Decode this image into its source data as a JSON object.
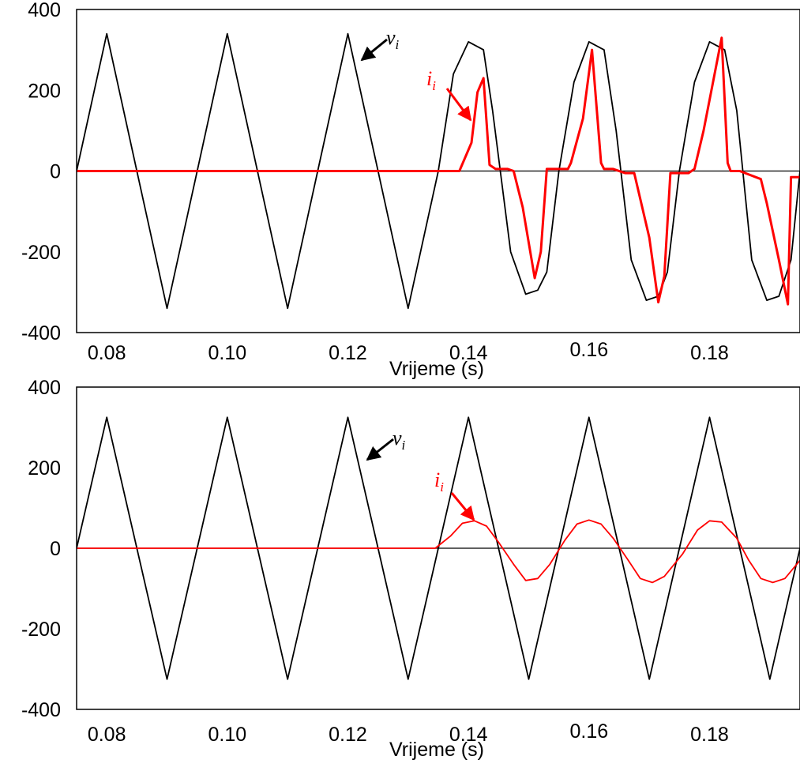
{
  "chart_data": [
    {
      "type": "line",
      "xlabel": "Vrijeme (s)",
      "ylabel": "",
      "xlim": [
        0.075,
        0.195
      ],
      "ylim": [
        -400,
        400
      ],
      "xticks": [
        "0.08",
        "0.10",
        "0.12",
        "0.14",
        "0.16",
        "0.18"
      ],
      "yticks": [
        "400",
        "200",
        "0",
        "-200",
        "-400"
      ],
      "grid": false,
      "annotations": [
        {
          "label": "v",
          "subscript": "i",
          "color": "#000000"
        },
        {
          "label": "i",
          "subscript": "i",
          "color": "#ff0000"
        }
      ],
      "series": [
        {
          "color": "#000000",
          "x": [
            0.075,
            0.08,
            0.085,
            0.09,
            0.095,
            0.1,
            0.105,
            0.11,
            0.115,
            0.12,
            0.125,
            0.13,
            0.135,
            0.1375,
            0.14,
            0.1425,
            0.144,
            0.147,
            0.1495,
            0.1515,
            0.153,
            0.155,
            0.1575,
            0.16,
            0.1625,
            0.1645,
            0.167,
            0.1695,
            0.1715,
            0.173,
            0.175,
            0.1775,
            0.18,
            0.1825,
            0.1845,
            0.187,
            0.1895,
            0.1915,
            0.1935,
            0.195
          ],
          "y": [
            0,
            340,
            0,
            -340,
            0,
            340,
            0,
            -340,
            0,
            340,
            0,
            -340,
            0,
            240,
            320,
            300,
            150,
            -200,
            -305,
            -295,
            -250,
            0,
            220,
            320,
            300,
            100,
            -220,
            -320,
            -310,
            -250,
            0,
            220,
            320,
            300,
            150,
            -220,
            -320,
            -310,
            -220,
            0
          ]
        },
        {
          "color": "#ff0000",
          "x": [
            0.075,
            0.1385,
            0.1405,
            0.1415,
            0.1425,
            0.1435,
            0.1445,
            0.1465,
            0.1475,
            0.149,
            0.151,
            0.152,
            0.153,
            0.154,
            0.1565,
            0.157,
            0.159,
            0.1605,
            0.162,
            0.1625,
            0.164,
            0.166,
            0.1675,
            0.17,
            0.1715,
            0.1725,
            0.1735,
            0.1765,
            0.1775,
            0.179,
            0.182,
            0.183,
            0.1835,
            0.185,
            0.1885,
            0.1895,
            0.1915,
            0.193,
            0.1935,
            0.195
          ],
          "y": [
            0,
            0,
            70,
            195,
            230,
            15,
            5,
            5,
            0,
            -90,
            -265,
            -200,
            5,
            5,
            5,
            20,
            130,
            300,
            20,
            5,
            5,
            -5,
            -5,
            -165,
            -325,
            -260,
            -5,
            -5,
            5,
            100,
            330,
            20,
            0,
            0,
            -20,
            -80,
            -220,
            -330,
            -15,
            -15
          ]
        }
      ]
    },
    {
      "type": "line",
      "xlabel": "Vrijeme (s)",
      "ylabel": "",
      "xlim": [
        0.075,
        0.195
      ],
      "ylim": [
        -400,
        400
      ],
      "xticks": [
        "0.08",
        "0.10",
        "0.12",
        "0.14",
        "0.16",
        "0.18"
      ],
      "yticks": [
        "400",
        "200",
        "0",
        "-200",
        "-400"
      ],
      "grid": false,
      "annotations": [
        {
          "label": "v",
          "subscript": "i",
          "color": "#000000"
        },
        {
          "label": "i",
          "subscript": "i",
          "color": "#ff0000"
        }
      ],
      "series": [
        {
          "color": "#000000",
          "x": [
            0.075,
            0.08,
            0.085,
            0.09,
            0.095,
            0.1,
            0.105,
            0.11,
            0.115,
            0.12,
            0.125,
            0.13,
            0.135,
            0.14,
            0.145,
            0.15,
            0.155,
            0.16,
            0.165,
            0.17,
            0.175,
            0.18,
            0.185,
            0.19,
            0.195
          ],
          "y": [
            0,
            325,
            0,
            -325,
            0,
            325,
            0,
            -325,
            0,
            325,
            0,
            -325,
            0,
            325,
            0,
            -325,
            0,
            325,
            0,
            -325,
            0,
            325,
            0,
            -325,
            0
          ]
        },
        {
          "color": "#ff0000",
          "x": [
            0.075,
            0.1345,
            0.137,
            0.139,
            0.141,
            0.143,
            0.145,
            0.1475,
            0.1495,
            0.1515,
            0.1535,
            0.156,
            0.158,
            0.16,
            0.162,
            0.164,
            0.1665,
            0.1685,
            0.1705,
            0.1725,
            0.1755,
            0.178,
            0.18,
            0.182,
            0.1845,
            0.1865,
            0.1885,
            0.1905,
            0.1925,
            0.195
          ],
          "y": [
            0,
            0,
            30,
            62,
            68,
            55,
            15,
            -40,
            -80,
            -75,
            -40,
            20,
            60,
            70,
            60,
            25,
            -30,
            -75,
            -85,
            -70,
            -15,
            45,
            68,
            65,
            25,
            -30,
            -75,
            -85,
            -75,
            -30
          ]
        }
      ]
    }
  ]
}
